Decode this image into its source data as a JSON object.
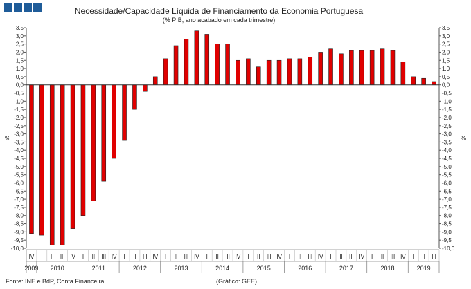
{
  "header": {
    "title": "Necessidade/Capacidade Líquida de Financiamento da Economia Portuguesa",
    "subtitle": "(% PIB, ano acabado em cada trimestre)",
    "logo_color": "#1f5c99"
  },
  "footer": {
    "source": "Fonte: INE e BdP, Conta Financeira",
    "credit": "(Gráfico: GEE)"
  },
  "chart_data": {
    "type": "bar",
    "ylabel_left": "%",
    "ylabel_right": "%",
    "ylim": [
      -10.0,
      3.5
    ],
    "ytick_step": 0.5,
    "grid": false,
    "bar_color": "#e00000",
    "quarters": [
      "IV",
      "I",
      "II",
      "III",
      "IV",
      "I",
      "II",
      "III",
      "IV",
      "I",
      "II",
      "III",
      "IV",
      "I",
      "II",
      "III",
      "IV",
      "I",
      "II",
      "III",
      "IV",
      "I",
      "II",
      "III",
      "IV",
      "I",
      "II",
      "III",
      "IV",
      "I",
      "II",
      "III",
      "IV",
      "I",
      "II",
      "III",
      "IV",
      "I",
      "II",
      "III"
    ],
    "years": [
      {
        "label": "2009",
        "count": 1
      },
      {
        "label": "2010",
        "count": 4
      },
      {
        "label": "2011",
        "count": 4
      },
      {
        "label": "2012",
        "count": 4
      },
      {
        "label": "2013",
        "count": 4
      },
      {
        "label": "2014",
        "count": 4
      },
      {
        "label": "2015",
        "count": 4
      },
      {
        "label": "2016",
        "count": 4
      },
      {
        "label": "2017",
        "count": 4
      },
      {
        "label": "2018",
        "count": 4
      },
      {
        "label": "2019",
        "count": 3
      }
    ],
    "values": [
      -9.1,
      -9.2,
      -9.8,
      -9.8,
      -8.8,
      -8.0,
      -7.1,
      -5.9,
      -4.5,
      -3.4,
      -1.5,
      -0.4,
      0.5,
      1.6,
      2.4,
      2.8,
      3.3,
      3.1,
      2.5,
      2.5,
      1.5,
      1.6,
      1.1,
      1.5,
      1.5,
      1.6,
      1.6,
      1.7,
      2.0,
      2.2,
      1.9,
      2.1,
      2.1,
      2.1,
      2.2,
      2.1,
      1.4,
      0.5,
      0.4,
      0.2
    ]
  }
}
